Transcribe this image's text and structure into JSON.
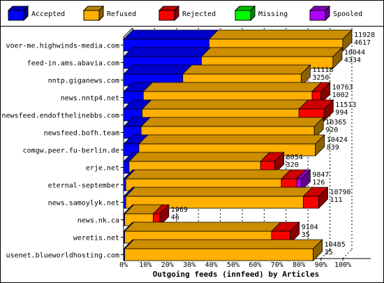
{
  "chart_data": {
    "type": "bar",
    "orientation": "horizontal",
    "stacked": true,
    "percent_scale": true,
    "title": "",
    "xlabel": "Outgoing feeds (innfeed) by Articles",
    "ylabel": "",
    "xlim": [
      0,
      100
    ],
    "x_ticks": [
      "0%",
      "10%",
      "20%",
      "30%",
      "40%",
      "50%",
      "60%",
      "70%",
      "80%",
      "90%",
      "100%"
    ],
    "grid": "vertical dashed",
    "legend_position": "top",
    "series": [
      {
        "name": "Accepted",
        "color": "#0000ff"
      },
      {
        "name": "Refused",
        "color": "#ffb000"
      },
      {
        "name": "Rejected",
        "color": "#ff0000"
      },
      {
        "name": "Missing",
        "color": "#00ff00"
      },
      {
        "name": "Spooled",
        "color": "#b000ff"
      }
    ],
    "categories": [
      {
        "name": "voer-me.highwinds-media.com",
        "total": "11928",
        "accepted_count": "4617",
        "segments": [
          39,
          61,
          0,
          0,
          0
        ]
      },
      {
        "name": "feed-in.ams.abavia.com",
        "total": "10044",
        "accepted_count": "4334",
        "segments": [
          35.5,
          60,
          0,
          0,
          0
        ]
      },
      {
        "name": "nntp.giganews.com",
        "total": "11118",
        "accepted_count": "3250",
        "segments": [
          27,
          54,
          0,
          0,
          0
        ]
      },
      {
        "name": "news.nntp4.net",
        "total": "10763",
        "accepted_count": "1002",
        "segments": [
          9,
          77,
          4,
          0,
          0
        ]
      },
      {
        "name": "newsfeed.endofthelinebbs.com",
        "total": "11513",
        "accepted_count": "994",
        "segments": [
          8.5,
          71.5,
          11.5,
          0,
          0
        ]
      },
      {
        "name": "newsfeed.bofh.team",
        "total": "10365",
        "accepted_count": "920",
        "segments": [
          8,
          79,
          0,
          0,
          0
        ]
      },
      {
        "name": "comgw.peer.fu-berlin.de",
        "total": "10424",
        "accepted_count": "839",
        "segments": [
          7,
          80.5,
          0,
          0,
          0
        ]
      },
      {
        "name": "erje.net",
        "total": "8054",
        "accepted_count": "320",
        "segments": [
          2.5,
          60,
          6.5,
          0,
          0
        ]
      },
      {
        "name": "eternal-september",
        "total": "9847",
        "accepted_count": "126",
        "segments": [
          1,
          71,
          7,
          0,
          2
        ]
      },
      {
        "name": "news.samoylyk.net",
        "total": "10790",
        "accepted_count": "111",
        "segments": [
          1,
          81,
          7,
          0,
          0
        ]
      },
      {
        "name": "news.nk.ca",
        "total": "1969",
        "accepted_count": "46",
        "segments": [
          0.5,
          13,
          3,
          0,
          0
        ]
      },
      {
        "name": "weretis.net",
        "total": "9104",
        "accepted_count": "35",
        "segments": [
          0.5,
          67,
          8.5,
          0,
          0
        ]
      },
      {
        "name": "usenet.blueworldhosting.com",
        "total": "10485",
        "accepted_count": "35",
        "segments": [
          0.5,
          86,
          0,
          0,
          0
        ]
      }
    ]
  }
}
